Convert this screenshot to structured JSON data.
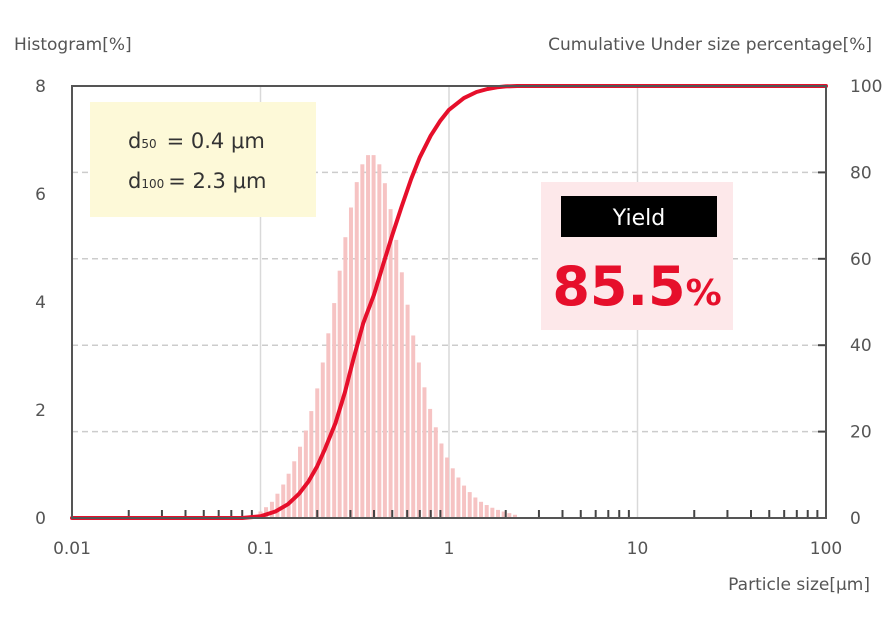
{
  "chart_data": {
    "type": "bar+line",
    "y_left_label": "Histogram[%]",
    "y_right_label": "Cumulative Under size percentage[%]",
    "x_label": "Particle size[μm]",
    "x_scale": "log",
    "xlim": [
      0.01,
      100
    ],
    "ylim_left": [
      0,
      8
    ],
    "ylim_right": [
      0,
      100
    ],
    "x_ticks": [
      "0.01",
      "0.1",
      "1",
      "10",
      "100"
    ],
    "y_left_ticks": [
      "0",
      "2",
      "4",
      "6",
      "8"
    ],
    "y_right_ticks": [
      "0",
      "20",
      "40",
      "60",
      "80",
      "100"
    ],
    "histogram": {
      "x": [
        0.1,
        0.107,
        0.115,
        0.123,
        0.132,
        0.141,
        0.151,
        0.162,
        0.174,
        0.186,
        0.2,
        0.214,
        0.229,
        0.246,
        0.263,
        0.282,
        0.302,
        0.324,
        0.347,
        0.372,
        0.398,
        0.427,
        0.457,
        0.49,
        0.525,
        0.562,
        0.603,
        0.646,
        0.692,
        0.741,
        0.794,
        0.851,
        0.912,
        0.977,
        1.047,
        1.122,
        1.202,
        1.288,
        1.38,
        1.479,
        1.585,
        1.698,
        1.82,
        1.95,
        2.089,
        2.239
      ],
      "values": [
        0.12,
        0.2,
        0.3,
        0.45,
        0.62,
        0.82,
        1.05,
        1.32,
        1.62,
        1.98,
        2.4,
        2.88,
        3.42,
        3.98,
        4.58,
        5.2,
        5.75,
        6.22,
        6.55,
        6.72,
        6.72,
        6.55,
        6.2,
        5.72,
        5.15,
        4.55,
        3.95,
        3.38,
        2.88,
        2.42,
        2.02,
        1.68,
        1.38,
        1.12,
        0.92,
        0.75,
        0.6,
        0.48,
        0.38,
        0.3,
        0.24,
        0.19,
        0.15,
        0.12,
        0.09,
        0.06
      ],
      "color": "#f6c3c3"
    },
    "cumulative": {
      "x": [
        0.01,
        0.08,
        0.1,
        0.12,
        0.14,
        0.16,
        0.18,
        0.2,
        0.22,
        0.25,
        0.28,
        0.31,
        0.35,
        0.4,
        0.45,
        0.5,
        0.56,
        0.63,
        0.7,
        0.8,
        0.9,
        1.0,
        1.2,
        1.4,
        1.6,
        1.8,
        2.0,
        2.3,
        2.6,
        100
      ],
      "values": [
        0,
        0,
        0.4,
        1.5,
        3.2,
        5.6,
        8.5,
        12,
        16,
        22,
        29,
        36.5,
        45,
        51.7,
        59,
        65.5,
        72,
        78.5,
        83.5,
        88.5,
        92,
        94.5,
        97.2,
        98.6,
        99.3,
        99.7,
        99.9,
        100,
        100,
        100
      ],
      "color": "#e60f2b"
    },
    "grid": true
  },
  "stats_box": {
    "d50_symbol": "d",
    "d50_sub": "50",
    "d50_value": "=  0.4 μm",
    "d100_symbol": "d",
    "d100_sub": "100",
    "d100_value": "=  2.3 μm",
    "background": "#fdf9d8"
  },
  "yield_box": {
    "label": "Yield",
    "value": "85.5",
    "unit": "%",
    "background": "#fde8ea"
  }
}
